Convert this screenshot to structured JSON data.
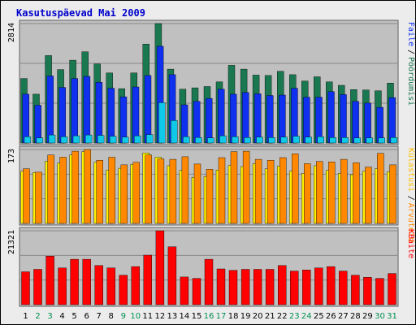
{
  "title": "Kasutuspäevad Mai 2009",
  "colors": {
    "page_bg": "#ececec",
    "panel_bg": "#c0c0c0",
    "title": "#0000cc",
    "weekday": "#000000",
    "weekend": "#009050",
    "hosts": "#1a7850",
    "pages": "#1030f0",
    "files": "#10c8e8",
    "visits_dark": "#ff8800",
    "visits_light": "#fff000",
    "kbytes": "#ff0000",
    "grid": "#888888"
  },
  "chart_data": {
    "type": "bar",
    "title": "Kasutuspäevad Mai 2009",
    "days": [
      "1",
      "2",
      "3",
      "4",
      "5",
      "6",
      "7",
      "8",
      "9",
      "10",
      "11",
      "12",
      "13",
      "14",
      "15",
      "16",
      "17",
      "18",
      "19",
      "20",
      "21",
      "22",
      "23",
      "24",
      "25",
      "26",
      "27",
      "28",
      "29",
      "30",
      "31"
    ],
    "weekend_days": [
      "2",
      "3",
      "9",
      "10",
      "16",
      "17",
      "23",
      "24",
      "30",
      "31"
    ],
    "panels": [
      {
        "id": "requests",
        "ymax_label": "2814",
        "ymax": 2814,
        "legend": [
          "Faile",
          "Pöördumisi"
        ],
        "legend_colors": [
          "#1030f0",
          "#1a7850"
        ],
        "series": [
          {
            "name": "Pöördumisi",
            "color": "#1a7850",
            "values": [
              1520,
              1150,
              2060,
              1730,
              1950,
              2150,
              1860,
              1650,
              1280,
              1650,
              2330,
              2814,
              1740,
              1270,
              1300,
              1330,
              1440,
              1830,
              1740,
              1600,
              1590,
              1690,
              1610,
              1460,
              1560,
              1440,
              1360,
              1260,
              1250,
              1230,
              1410
            ]
          },
          {
            "name": "Faile",
            "color": "#1030f0",
            "values": [
              1150,
              890,
              1580,
              1310,
              1520,
              1570,
              1430,
              1290,
              1090,
              1320,
              1590,
              2280,
              1610,
              900,
              980,
              1050,
              1270,
              1150,
              1190,
              1160,
              1120,
              1130,
              1290,
              1080,
              1080,
              1210,
              1140,
              980,
              940,
              840,
              1070
            ]
          },
          {
            "name": "",
            "color": "#10c8e8",
            "values": [
              150,
              120,
              190,
              150,
              170,
              190,
              180,
              160,
              140,
              170,
              200,
              950,
              530,
              150,
              130,
              120,
              170,
              150,
              130,
              140,
              130,
              140,
              160,
              140,
              150,
              130,
              130,
              120,
              120,
              120,
              130
            ]
          }
        ]
      },
      {
        "id": "visits",
        "ymax_label": "173",
        "ymax": 173,
        "legend": [
          "Külastusi",
          "Arvuteid"
        ],
        "legend_colors": [
          "#ffc000",
          "#ff8800"
        ],
        "series": [
          {
            "name": "Külastusi",
            "color": "#fff000",
            "values": [
              122,
              119,
              146,
              141,
              160,
              168,
              143,
              125,
              129,
              138,
              165,
              155,
              135,
              124,
              108,
              110,
              125,
              136,
              133,
              140,
              128,
              134,
              122,
              117,
              135,
              124,
              117,
              114,
              122,
              128,
              121
            ]
          },
          {
            "name": "Arvuteid",
            "color": "#ff8800",
            "values": [
              128,
              120,
              160,
              155,
              169,
              173,
              148,
              155,
              137,
              143,
              160,
              151,
              150,
              156,
              139,
              127,
              154,
              168,
              169,
              150,
              148,
              154,
              163,
              140,
              145,
              144,
              150,
              142,
              132,
              164,
              137
            ]
          }
        ]
      },
      {
        "id": "kbytes",
        "ymax_label": "21321",
        "ymax": 21321,
        "legend": [
          "KBaite"
        ],
        "legend_colors": [
          "#ff0000"
        ],
        "series": [
          {
            "name": "KBaite",
            "color": "#ff0000",
            "values": [
              9500,
              10200,
              14000,
              10600,
              13100,
              13100,
              11300,
              10600,
              8500,
              11000,
              14300,
              21321,
              16700,
              8000,
              7600,
              13100,
              10300,
              9900,
              10200,
              10200,
              10200,
              11300,
              9700,
              10000,
              10600,
              11000,
              9700,
              8500,
              7900,
              7600,
              9000
            ]
          }
        ]
      }
    ]
  }
}
